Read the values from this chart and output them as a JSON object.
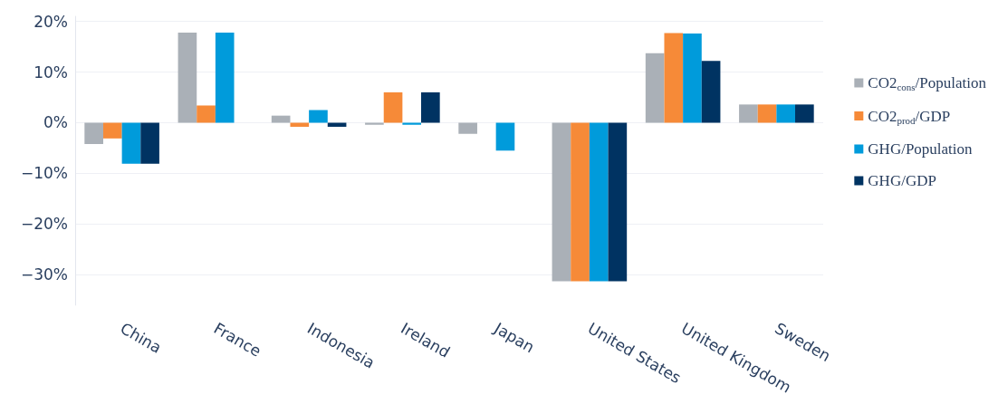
{
  "chart_data": {
    "type": "bar",
    "categories": [
      "China",
      "France",
      "Indonesia",
      "Ireland",
      "Japan",
      "United States",
      "United Kingdom",
      "Sweden"
    ],
    "series": [
      {
        "name": "CO2$_{cons}$/Population",
        "color": "#aab0b7",
        "values": [
          -4.2,
          17.8,
          1.4,
          -0.4,
          -2.2,
          -31.3,
          13.7,
          3.6
        ]
      },
      {
        "name": "CO2$_{prod}$/GDP",
        "color": "#f68a38",
        "values": [
          -3.1,
          3.4,
          -0.8,
          6.0,
          0,
          -31.3,
          17.7,
          3.6
        ]
      },
      {
        "name": "GHG/Population",
        "color": "#009bdb",
        "values": [
          -8.1,
          17.8,
          2.5,
          -0.4,
          -5.5,
          -31.3,
          17.6,
          3.6
        ]
      },
      {
        "name": "GHG/GDP",
        "color": "#003362",
        "values": [
          -8.1,
          0,
          -0.8,
          6.0,
          0,
          -31.3,
          12.2,
          3.6
        ]
      }
    ],
    "ylim": [
      -36,
      21
    ],
    "yticks": [
      {
        "value": -30,
        "label": "−30%"
      },
      {
        "value": -20,
        "label": "−20%"
      },
      {
        "value": -10,
        "label": "−10%"
      },
      {
        "value": 0,
        "label": "0%"
      },
      {
        "value": 10,
        "label": "10%"
      },
      {
        "value": 20,
        "label": "20%"
      }
    ],
    "grid": "y",
    "legend": "right"
  }
}
